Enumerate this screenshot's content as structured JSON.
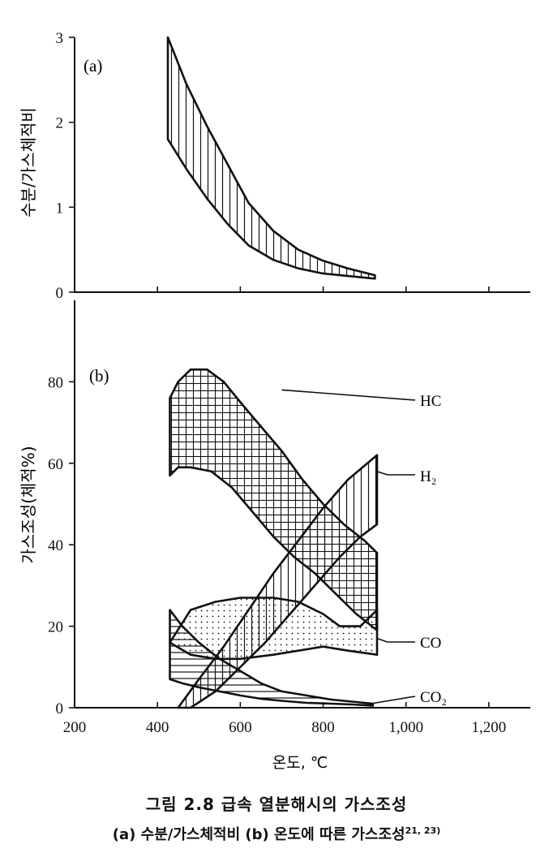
{
  "caption": {
    "title": "그림 2.8  급속 열분해시의 가스조성",
    "subtitle": "(a) 수분/가스체적비  (b) 온도에 따른 가스조성",
    "refs": "21, 23)"
  },
  "x_axis": {
    "label": "온도, ℃",
    "tick_labels": [
      "200",
      "400",
      "600",
      "800",
      "1,000",
      "1,200"
    ],
    "tick_values": [
      200,
      400,
      600,
      800,
      1000,
      1200
    ],
    "range": [
      200,
      1300
    ]
  },
  "chart_data": [
    {
      "type": "area",
      "panel_label": "(a)",
      "ylabel": "수분/가스체적비",
      "ylim": [
        0,
        3
      ],
      "y_tick_labels": [
        "0",
        "1",
        "2",
        "3"
      ],
      "y_tick_values": [
        0,
        1,
        2,
        3
      ],
      "grid": false,
      "series": [
        {
          "fill": "vertical-hatch",
          "upper": [
            [
              425,
              3.0
            ],
            [
              470,
              2.45
            ],
            [
              520,
              1.95
            ],
            [
              570,
              1.5
            ],
            [
              620,
              1.05
            ],
            [
              680,
              0.72
            ],
            [
              740,
              0.5
            ],
            [
              800,
              0.37
            ],
            [
              860,
              0.28
            ],
            [
              925,
              0.2
            ]
          ],
          "lower": [
            [
              425,
              1.8
            ],
            [
              470,
              1.45
            ],
            [
              520,
              1.1
            ],
            [
              570,
              0.8
            ],
            [
              620,
              0.55
            ],
            [
              680,
              0.38
            ],
            [
              740,
              0.28
            ],
            [
              800,
              0.22
            ],
            [
              860,
              0.19
            ],
            [
              925,
              0.16
            ]
          ]
        }
      ]
    },
    {
      "type": "area",
      "panel_label": "(b)",
      "ylabel": "가스조성(체적%)",
      "ylim": [
        0,
        100
      ],
      "y_tick_labels": [
        "0",
        "20",
        "40",
        "60",
        "80"
      ],
      "y_tick_values": [
        0,
        20,
        40,
        60,
        80
      ],
      "grid": false,
      "series": [
        {
          "name": "HC",
          "fill": "grid-hatch",
          "upper": [
            [
              430,
              76
            ],
            [
              450,
              80
            ],
            [
              480,
              83
            ],
            [
              520,
              83
            ],
            [
              560,
              80
            ],
            [
              600,
              75
            ],
            [
              650,
              69
            ],
            [
              700,
              63
            ],
            [
              750,
              56
            ],
            [
              800,
              50
            ],
            [
              850,
              45
            ],
            [
              900,
              41
            ],
            [
              930,
              38
            ]
          ],
          "lower": [
            [
              430,
              57
            ],
            [
              450,
              59
            ],
            [
              480,
              59
            ],
            [
              530,
              58
            ],
            [
              580,
              54
            ],
            [
              630,
              48
            ],
            [
              680,
              42
            ],
            [
              730,
              37
            ],
            [
              780,
              33
            ],
            [
              830,
              28
            ],
            [
              880,
              23
            ],
            [
              930,
              19
            ]
          ]
        },
        {
          "name": "H₂",
          "fill": "vertical-hatch",
          "upper": [
            [
              450,
              0
            ],
            [
              500,
              7
            ],
            [
              560,
              15
            ],
            [
              620,
              24
            ],
            [
              680,
              33
            ],
            [
              740,
              41
            ],
            [
              800,
              49
            ],
            [
              860,
              56
            ],
            [
              930,
              62
            ]
          ],
          "lower": [
            [
              480,
              0
            ],
            [
              540,
              4
            ],
            [
              600,
              10
            ],
            [
              660,
              16
            ],
            [
              720,
              23
            ],
            [
              780,
              30
            ],
            [
              840,
              37
            ],
            [
              890,
              42
            ],
            [
              930,
              45
            ]
          ]
        },
        {
          "name": "CO",
          "fill": "dots",
          "upper": [
            [
              430,
              16
            ],
            [
              480,
              24
            ],
            [
              540,
              26
            ],
            [
              600,
              27
            ],
            [
              680,
              27
            ],
            [
              740,
              26
            ],
            [
              800,
              23
            ],
            [
              840,
              20
            ],
            [
              890,
              20
            ],
            [
              930,
              24
            ]
          ],
          "lower": [
            [
              430,
              16
            ],
            [
              480,
              13
            ],
            [
              540,
              12
            ],
            [
              600,
              12
            ],
            [
              680,
              13
            ],
            [
              740,
              14
            ],
            [
              800,
              15
            ],
            [
              860,
              14
            ],
            [
              930,
              13
            ]
          ]
        },
        {
          "name": "CO₂",
          "fill": "horizontal-hatch",
          "upper": [
            [
              430,
              24
            ],
            [
              460,
              20
            ],
            [
              500,
              16
            ],
            [
              550,
              12
            ],
            [
              600,
              9
            ],
            [
              650,
              6
            ],
            [
              700,
              4
            ],
            [
              760,
              3
            ],
            [
              820,
              2
            ],
            [
              870,
              1.5
            ],
            [
              920,
              1
            ]
          ],
          "lower": [
            [
              430,
              7
            ],
            [
              460,
              6
            ],
            [
              500,
              5
            ],
            [
              550,
              4
            ],
            [
              600,
              3
            ],
            [
              650,
              2.2
            ],
            [
              700,
              1.7
            ],
            [
              760,
              1.2
            ],
            [
              820,
              1
            ],
            [
              870,
              0.8
            ],
            [
              920,
              0.5
            ]
          ]
        }
      ]
    }
  ]
}
